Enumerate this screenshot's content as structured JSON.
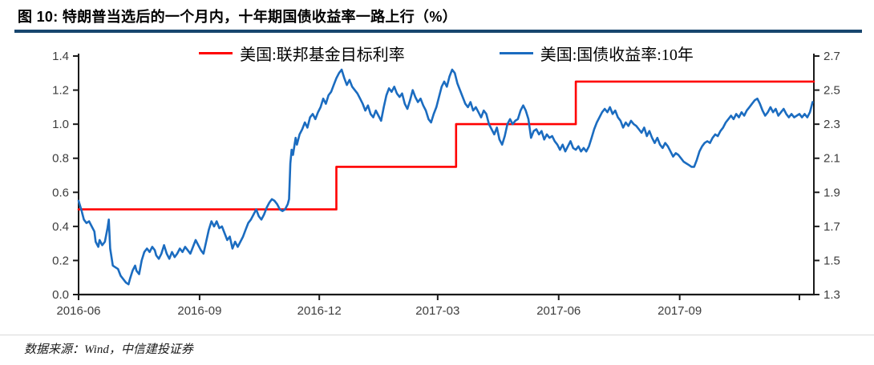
{
  "figure": {
    "title": "图 10: 特朗普当选后的一个月内，十年期国债收益率一路上行（%）",
    "source": "数据来源：Wind，中信建投证券"
  },
  "colors": {
    "title_rule": "#17466E",
    "axis_line": "#1a1a1a",
    "tick_label": "#3d3d3d",
    "separator": "#d9d9d9",
    "background": "#ffffff",
    "red_series": "#ff0000",
    "blue_series": "#1b6cc0"
  },
  "chart_data": {
    "type": "line",
    "figure_label": "图 10",
    "title": "特朗普当选后的一个月内，十年期国债收益率一路上行（%）",
    "grid": false,
    "legend_position": "top-center",
    "x": {
      "unit": "days since 2016-06-01",
      "range": [
        0,
        559
      ],
      "tick_positions": [
        0,
        92,
        183,
        273,
        365,
        457,
        548
      ],
      "tick_labels": [
        "2016-06",
        "2016-09",
        "2016-12",
        "2017-03",
        "2017-06",
        "2017-09",
        ""
      ]
    },
    "left_axis": {
      "range": [
        0.0,
        1.4
      ],
      "ticks": [
        0.0,
        0.2,
        0.4,
        0.6,
        0.8,
        1.0,
        1.2,
        1.4
      ]
    },
    "right_axis": {
      "range": [
        1.3,
        2.7
      ],
      "ticks": [
        1.3,
        1.5,
        1.7,
        1.9,
        2.1,
        2.3,
        2.5,
        2.7
      ]
    },
    "series": [
      {
        "name": "美国:联邦基金目标利率",
        "axis": "left",
        "type": "step",
        "color": "#ff0000",
        "points": [
          [
            0,
            0.5
          ],
          [
            196,
            0.5
          ],
          [
            196,
            0.75
          ],
          [
            287,
            0.75
          ],
          [
            287,
            1.0
          ],
          [
            378,
            1.0
          ],
          [
            378,
            1.25
          ],
          [
            559,
            1.25
          ]
        ]
      },
      {
        "name": "美国:国债收益率:10年",
        "axis": "right",
        "type": "line",
        "color": "#1b6cc0",
        "points": [
          [
            0,
            1.85
          ],
          [
            2,
            1.8
          ],
          [
            4,
            1.74
          ],
          [
            6,
            1.72
          ],
          [
            8,
            1.73
          ],
          [
            10,
            1.7
          ],
          [
            12,
            1.67
          ],
          [
            13,
            1.61
          ],
          [
            15,
            1.58
          ],
          [
            16,
            1.62
          ],
          [
            18,
            1.59
          ],
          [
            20,
            1.61
          ],
          [
            22,
            1.69
          ],
          [
            23,
            1.74
          ],
          [
            24,
            1.57
          ],
          [
            26,
            1.47
          ],
          [
            28,
            1.46
          ],
          [
            30,
            1.45
          ],
          [
            32,
            1.41
          ],
          [
            34,
            1.39
          ],
          [
            36,
            1.37
          ],
          [
            38,
            1.36
          ],
          [
            39,
            1.39
          ],
          [
            41,
            1.44
          ],
          [
            43,
            1.47
          ],
          [
            44,
            1.44
          ],
          [
            46,
            1.42
          ],
          [
            48,
            1.5
          ],
          [
            50,
            1.55
          ],
          [
            52,
            1.57
          ],
          [
            54,
            1.55
          ],
          [
            56,
            1.58
          ],
          [
            58,
            1.56
          ],
          [
            59,
            1.53
          ],
          [
            61,
            1.51
          ],
          [
            63,
            1.54
          ],
          [
            65,
            1.59
          ],
          [
            67,
            1.54
          ],
          [
            69,
            1.51
          ],
          [
            71,
            1.55
          ],
          [
            73,
            1.52
          ],
          [
            75,
            1.54
          ],
          [
            77,
            1.57
          ],
          [
            79,
            1.55
          ],
          [
            81,
            1.58
          ],
          [
            83,
            1.56
          ],
          [
            85,
            1.54
          ],
          [
            87,
            1.58
          ],
          [
            89,
            1.62
          ],
          [
            91,
            1.59
          ],
          [
            93,
            1.56
          ],
          [
            95,
            1.54
          ],
          [
            97,
            1.61
          ],
          [
            99,
            1.68
          ],
          [
            101,
            1.73
          ],
          [
            103,
            1.7
          ],
          [
            105,
            1.73
          ],
          [
            107,
            1.69
          ],
          [
            109,
            1.7
          ],
          [
            111,
            1.66
          ],
          [
            113,
            1.62
          ],
          [
            115,
            1.64
          ],
          [
            117,
            1.57
          ],
          [
            119,
            1.61
          ],
          [
            121,
            1.58
          ],
          [
            123,
            1.61
          ],
          [
            125,
            1.64
          ],
          [
            127,
            1.68
          ],
          [
            129,
            1.72
          ],
          [
            131,
            1.74
          ],
          [
            133,
            1.77
          ],
          [
            135,
            1.8
          ],
          [
            137,
            1.76
          ],
          [
            139,
            1.74
          ],
          [
            141,
            1.77
          ],
          [
            143,
            1.81
          ],
          [
            145,
            1.84
          ],
          [
            147,
            1.86
          ],
          [
            149,
            1.85
          ],
          [
            151,
            1.83
          ],
          [
            153,
            1.8
          ],
          [
            155,
            1.79
          ],
          [
            157,
            1.8
          ],
          [
            159,
            1.83
          ],
          [
            160,
            1.86
          ],
          [
            161,
            2.07
          ],
          [
            162,
            2.15
          ],
          [
            163,
            2.12
          ],
          [
            165,
            2.22
          ],
          [
            166,
            2.18
          ],
          [
            168,
            2.24
          ],
          [
            170,
            2.27
          ],
          [
            172,
            2.31
          ],
          [
            174,
            2.28
          ],
          [
            176,
            2.34
          ],
          [
            178,
            2.36
          ],
          [
            180,
            2.33
          ],
          [
            182,
            2.37
          ],
          [
            184,
            2.4
          ],
          [
            186,
            2.45
          ],
          [
            188,
            2.42
          ],
          [
            190,
            2.47
          ],
          [
            192,
            2.49
          ],
          [
            194,
            2.53
          ],
          [
            196,
            2.57
          ],
          [
            198,
            2.6
          ],
          [
            200,
            2.62
          ],
          [
            202,
            2.57
          ],
          [
            204,
            2.53
          ],
          [
            206,
            2.56
          ],
          [
            208,
            2.52
          ],
          [
            210,
            2.5
          ],
          [
            212,
            2.48
          ],
          [
            214,
            2.45
          ],
          [
            216,
            2.42
          ],
          [
            218,
            2.38
          ],
          [
            220,
            2.41
          ],
          [
            222,
            2.36
          ],
          [
            224,
            2.34
          ],
          [
            226,
            2.38
          ],
          [
            228,
            2.35
          ],
          [
            230,
            2.32
          ],
          [
            232,
            2.4
          ],
          [
            234,
            2.47
          ],
          [
            236,
            2.51
          ],
          [
            238,
            2.49
          ],
          [
            240,
            2.52
          ],
          [
            242,
            2.48
          ],
          [
            244,
            2.46
          ],
          [
            246,
            2.48
          ],
          [
            248,
            2.42
          ],
          [
            250,
            2.39
          ],
          [
            252,
            2.44
          ],
          [
            254,
            2.5
          ],
          [
            256,
            2.46
          ],
          [
            258,
            2.43
          ],
          [
            260,
            2.45
          ],
          [
            262,
            2.41
          ],
          [
            264,
            2.38
          ],
          [
            266,
            2.33
          ],
          [
            268,
            2.31
          ],
          [
            270,
            2.36
          ],
          [
            272,
            2.4
          ],
          [
            274,
            2.46
          ],
          [
            276,
            2.52
          ],
          [
            278,
            2.55
          ],
          [
            280,
            2.52
          ],
          [
            282,
            2.58
          ],
          [
            284,
            2.62
          ],
          [
            286,
            2.6
          ],
          [
            288,
            2.54
          ],
          [
            290,
            2.5
          ],
          [
            292,
            2.46
          ],
          [
            294,
            2.42
          ],
          [
            296,
            2.4
          ],
          [
            298,
            2.43
          ],
          [
            300,
            2.38
          ],
          [
            302,
            2.4
          ],
          [
            304,
            2.37
          ],
          [
            306,
            2.34
          ],
          [
            308,
            2.38
          ],
          [
            310,
            2.36
          ],
          [
            312,
            2.3
          ],
          [
            314,
            2.27
          ],
          [
            316,
            2.24
          ],
          [
            318,
            2.28
          ],
          [
            320,
            2.21
          ],
          [
            322,
            2.18
          ],
          [
            324,
            2.23
          ],
          [
            326,
            2.3
          ],
          [
            328,
            2.33
          ],
          [
            330,
            2.3
          ],
          [
            332,
            2.32
          ],
          [
            334,
            2.33
          ],
          [
            336,
            2.38
          ],
          [
            338,
            2.41
          ],
          [
            340,
            2.38
          ],
          [
            342,
            2.33
          ],
          [
            344,
            2.22
          ],
          [
            346,
            2.26
          ],
          [
            348,
            2.27
          ],
          [
            350,
            2.24
          ],
          [
            352,
            2.26
          ],
          [
            354,
            2.21
          ],
          [
            356,
            2.24
          ],
          [
            358,
            2.22
          ],
          [
            360,
            2.23
          ],
          [
            362,
            2.2
          ],
          [
            364,
            2.18
          ],
          [
            366,
            2.15
          ],
          [
            368,
            2.18
          ],
          [
            370,
            2.14
          ],
          [
            372,
            2.17
          ],
          [
            374,
            2.2
          ],
          [
            376,
            2.16
          ],
          [
            378,
            2.15
          ],
          [
            380,
            2.17
          ],
          [
            382,
            2.14
          ],
          [
            384,
            2.16
          ],
          [
            386,
            2.14
          ],
          [
            388,
            2.17
          ],
          [
            390,
            2.22
          ],
          [
            392,
            2.27
          ],
          [
            394,
            2.31
          ],
          [
            396,
            2.34
          ],
          [
            398,
            2.37
          ],
          [
            400,
            2.39
          ],
          [
            402,
            2.37
          ],
          [
            404,
            2.4
          ],
          [
            406,
            2.36
          ],
          [
            408,
            2.38
          ],
          [
            410,
            2.34
          ],
          [
            412,
            2.32
          ],
          [
            414,
            2.28
          ],
          [
            416,
            2.31
          ],
          [
            418,
            2.29
          ],
          [
            420,
            2.32
          ],
          [
            422,
            2.3
          ],
          [
            424,
            2.29
          ],
          [
            426,
            2.27
          ],
          [
            428,
            2.25
          ],
          [
            430,
            2.28
          ],
          [
            432,
            2.23
          ],
          [
            434,
            2.26
          ],
          [
            436,
            2.22
          ],
          [
            438,
            2.19
          ],
          [
            440,
            2.22
          ],
          [
            442,
            2.18
          ],
          [
            444,
            2.16
          ],
          [
            446,
            2.19
          ],
          [
            448,
            2.17
          ],
          [
            450,
            2.14
          ],
          [
            452,
            2.11
          ],
          [
            454,
            2.13
          ],
          [
            456,
            2.12
          ],
          [
            458,
            2.1
          ],
          [
            460,
            2.08
          ],
          [
            462,
            2.07
          ],
          [
            464,
            2.06
          ],
          [
            466,
            2.05
          ],
          [
            468,
            2.05
          ],
          [
            470,
            2.09
          ],
          [
            472,
            2.14
          ],
          [
            474,
            2.17
          ],
          [
            476,
            2.19
          ],
          [
            478,
            2.2
          ],
          [
            480,
            2.19
          ],
          [
            482,
            2.22
          ],
          [
            484,
            2.24
          ],
          [
            486,
            2.23
          ],
          [
            488,
            2.26
          ],
          [
            490,
            2.28
          ],
          [
            492,
            2.31
          ],
          [
            494,
            2.33
          ],
          [
            496,
            2.35
          ],
          [
            498,
            2.33
          ],
          [
            500,
            2.36
          ],
          [
            502,
            2.34
          ],
          [
            504,
            2.37
          ],
          [
            506,
            2.35
          ],
          [
            508,
            2.38
          ],
          [
            510,
            2.4
          ],
          [
            512,
            2.42
          ],
          [
            514,
            2.44
          ],
          [
            516,
            2.45
          ],
          [
            518,
            2.42
          ],
          [
            520,
            2.38
          ],
          [
            522,
            2.35
          ],
          [
            524,
            2.37
          ],
          [
            526,
            2.4
          ],
          [
            528,
            2.37
          ],
          [
            530,
            2.39
          ],
          [
            532,
            2.35
          ],
          [
            534,
            2.37
          ],
          [
            536,
            2.39
          ],
          [
            538,
            2.36
          ],
          [
            540,
            2.34
          ],
          [
            542,
            2.36
          ],
          [
            544,
            2.34
          ],
          [
            546,
            2.35
          ],
          [
            548,
            2.36
          ],
          [
            550,
            2.34
          ],
          [
            552,
            2.36
          ],
          [
            554,
            2.34
          ],
          [
            556,
            2.37
          ],
          [
            558,
            2.43
          ]
        ]
      }
    ]
  }
}
